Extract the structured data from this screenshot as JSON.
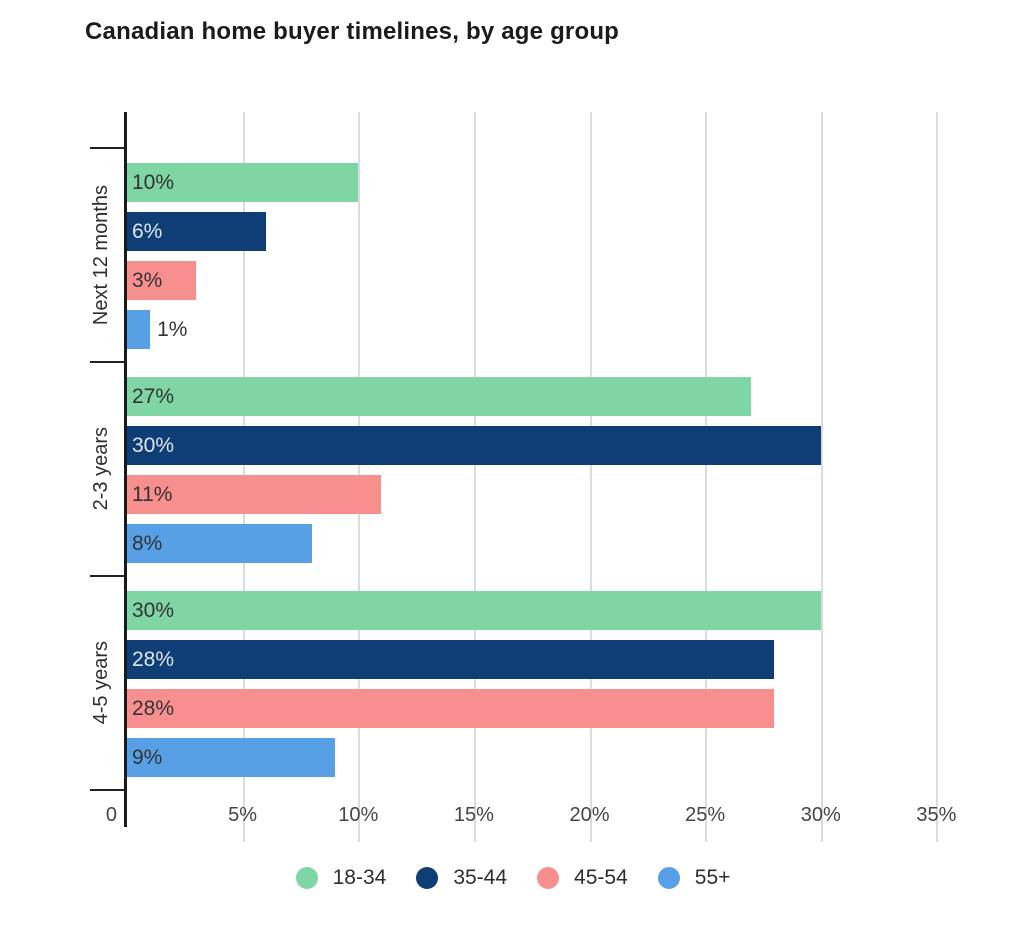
{
  "title": "Canadian home buyer timelines, by age group",
  "chart_data": {
    "type": "bar",
    "orientation": "horizontal",
    "title": "Canadian home buyer timelines, by age group",
    "categories": [
      "Next 12 months",
      "2-3 years",
      "4-5 years"
    ],
    "series": [
      {
        "name": "18-34",
        "color": "#80d5a4",
        "label_color": "#333333",
        "values": [
          10,
          27,
          30
        ]
      },
      {
        "name": "35-44",
        "color": "#0e3e75",
        "label_color": "#dfe6ee",
        "values": [
          6,
          30,
          28
        ]
      },
      {
        "name": "45-54",
        "color": "#f78f8e",
        "label_color": "#333333",
        "values": [
          3,
          11,
          28
        ]
      },
      {
        "name": "55+",
        "color": "#57a0e5",
        "label_color": "#333333",
        "values": [
          1,
          8,
          9
        ]
      }
    ],
    "value_suffix": "%",
    "outside_label_threshold": 3,
    "x_axis": {
      "max": 38.4,
      "ticks": [
        {
          "label": "0",
          "value": 0
        },
        {
          "label": "5%",
          "value": 5
        },
        {
          "label": "10%",
          "value": 10
        },
        {
          "label": "15%",
          "value": 15
        },
        {
          "label": "20%",
          "value": 20
        },
        {
          "label": "25%",
          "value": 25
        },
        {
          "label": "30%",
          "value": 30
        },
        {
          "label": "35%",
          "value": 35
        }
      ]
    },
    "grid": "vertical",
    "legend": {
      "position": "bottom"
    },
    "colors": {
      "axis": "#1a1a1a",
      "gridline": "#dcdcdc",
      "tick_label": "#454545",
      "background": "#ffffff"
    }
  }
}
